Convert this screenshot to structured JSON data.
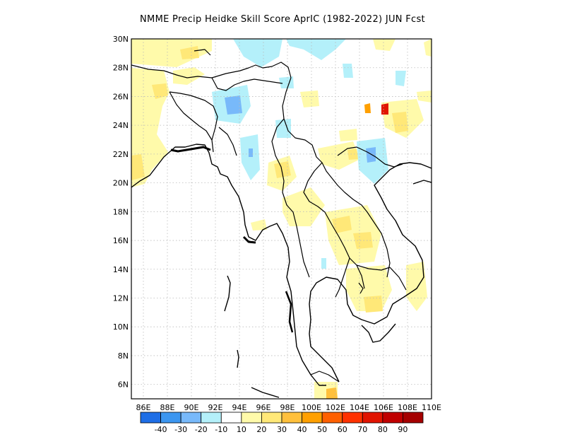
{
  "title": "NMME Precip Heidke Skill Score AprIC (1982-2022) JUN Fcst",
  "map": {
    "lon_range": [
      85,
      110
    ],
    "lat_range": [
      5,
      30
    ],
    "grid_lines": true,
    "lat_labels": [
      "30N",
      "28N",
      "26N",
      "24N",
      "22N",
      "20N",
      "18N",
      "16N",
      "14N",
      "12N",
      "10N",
      "8N",
      "6N"
    ],
    "lon_labels": [
      "86E",
      "88E",
      "90E",
      "92E",
      "94E",
      "96E",
      "98E",
      "100E",
      "102E",
      "104E",
      "106E",
      "108E",
      "110E"
    ]
  },
  "colorbar": {
    "colors": [
      "#1e6ee6",
      "#3c96f0",
      "#78b9fa",
      "#b4f0fa",
      "#ffffff",
      "#fffaaa",
      "#ffe878",
      "#ffc03c",
      "#ffa000",
      "#ff6000",
      "#ff3200",
      "#e11400",
      "#c00000",
      "#a50000"
    ],
    "labels": [
      "-40",
      "-30",
      "-20",
      "-10",
      "10",
      "20",
      "30",
      "40",
      "50",
      "60",
      "70",
      "80",
      "90"
    ]
  }
}
